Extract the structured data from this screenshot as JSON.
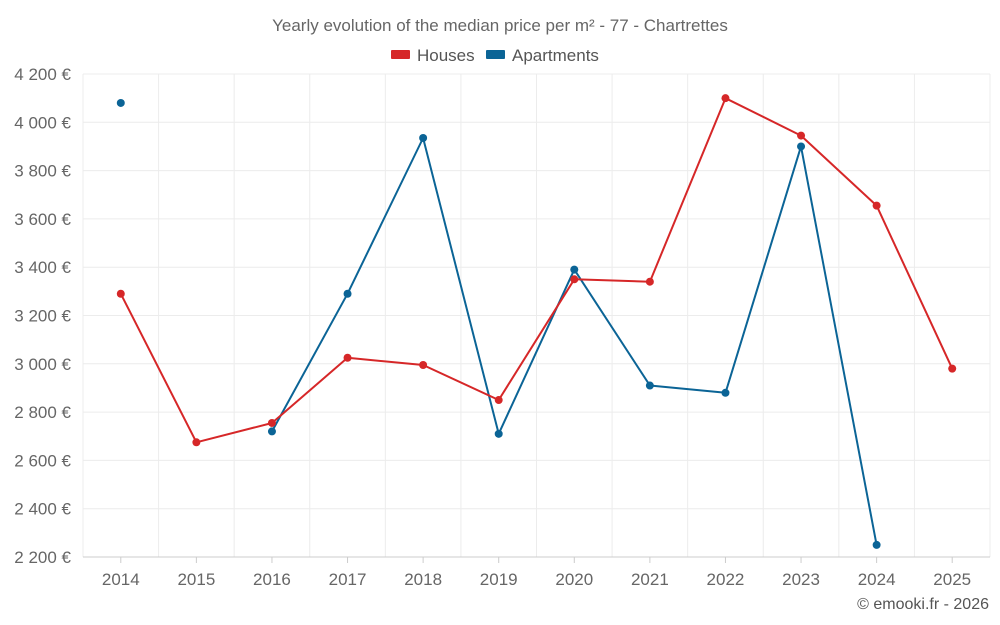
{
  "chart_data": {
    "type": "line",
    "title": "Yearly evolution of the median price per m² - 77 - Chartrettes",
    "xlabel": "",
    "ylabel": "",
    "x": [
      "2014",
      "2015",
      "2016",
      "2017",
      "2018",
      "2019",
      "2020",
      "2021",
      "2022",
      "2023",
      "2024",
      "2025"
    ],
    "ylim": [
      2200,
      4200
    ],
    "yticks": [
      2200,
      2400,
      2600,
      2800,
      3000,
      3200,
      3400,
      3600,
      3800,
      4000,
      4200
    ],
    "ytick_labels": [
      "2 200 €",
      "2 400 €",
      "2 600 €",
      "2 800 €",
      "3 000 €",
      "3 200 €",
      "3 400 €",
      "3 600 €",
      "3 800 €",
      "4 000 €",
      "4 200 €"
    ],
    "grid": true,
    "legend_position": "top-center",
    "series": [
      {
        "name": "Houses",
        "color": "#d62728",
        "values": [
          3290,
          2675,
          2755,
          3025,
          2995,
          2850,
          3350,
          3340,
          4100,
          3945,
          3655,
          2980
        ]
      },
      {
        "name": "Apartments",
        "color": "#0b6496",
        "values": [
          4080,
          null,
          2720,
          3290,
          3935,
          2710,
          3390,
          2910,
          2880,
          3900,
          2250,
          null
        ]
      }
    ]
  },
  "credit": "© emooki.fr - 2026"
}
